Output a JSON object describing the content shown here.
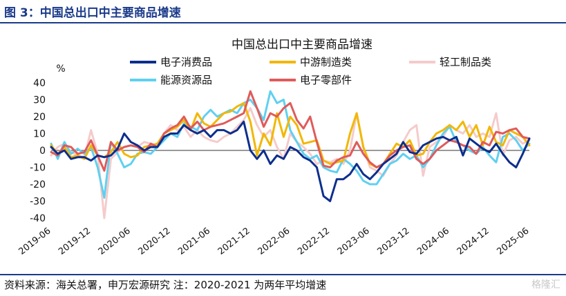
{
  "header": {
    "figure_title": "图 3：中国总出口中主要商品增速"
  },
  "footer": {
    "source": "资料来源：海关总署，申万宏源研究  注：2020-2021 为两年平均增速",
    "watermark": "格隆汇"
  },
  "colors": {
    "brand": "#1a3a8a",
    "electronics": "#0d2e8c",
    "midstream": "#f2b705",
    "light_industry": "#f5cbcb",
    "energy": "#5fd0f0",
    "components": "#e05a5a"
  },
  "chart_data": {
    "type": "line",
    "title": "中国总出口中主要商品增速",
    "ylabel": "%",
    "ylim": [
      -40,
      40
    ],
    "yticks": [
      -40,
      -30,
      -20,
      -10,
      0,
      10,
      20,
      30,
      40
    ],
    "grid": false,
    "legend_position": "top",
    "x": [
      "2019-06",
      "2019-07",
      "2019-08",
      "2019-09",
      "2019-10",
      "2019-11",
      "2019-12",
      "2020-01",
      "2020-02",
      "2020-03",
      "2020-04",
      "2020-05",
      "2020-06",
      "2020-07",
      "2020-08",
      "2020-09",
      "2020-10",
      "2020-11",
      "2020-12",
      "2021-01",
      "2021-02",
      "2021-03",
      "2021-04",
      "2021-05",
      "2021-06",
      "2021-07",
      "2021-08",
      "2021-09",
      "2021-10",
      "2021-11",
      "2021-12",
      "2022-01",
      "2022-02",
      "2022-03",
      "2022-04",
      "2022-05",
      "2022-06",
      "2022-07",
      "2022-08",
      "2022-09",
      "2022-10",
      "2022-11",
      "2022-12",
      "2023-01",
      "2023-02",
      "2023-03",
      "2023-04",
      "2023-05",
      "2023-06",
      "2023-07",
      "2023-08",
      "2023-09",
      "2023-10",
      "2023-11",
      "2023-12",
      "2024-01",
      "2024-02",
      "2024-03",
      "2024-04",
      "2024-05",
      "2024-06",
      "2024-07",
      "2024-08",
      "2024-09",
      "2024-10",
      "2024-11",
      "2024-12",
      "2025-01",
      "2025-02",
      "2025-03",
      "2025-04",
      "2025-05",
      "2025-06"
    ],
    "xticks": [
      "2019-06",
      "2019-12",
      "2020-06",
      "2020-12",
      "2021-06",
      "2021-12",
      "2022-06",
      "2022-12",
      "2023-06",
      "2023-12",
      "2024-06",
      "2024-12",
      "2025-06"
    ],
    "series": [
      {
        "name": "电子消费品",
        "color_key": "electronics",
        "values": [
          2,
          -2,
          0,
          -5,
          -4,
          -4,
          -6,
          -3,
          -4,
          -3,
          1,
          10,
          5,
          3,
          0,
          2,
          2,
          8,
          10,
          10,
          15,
          12,
          10,
          12,
          8,
          12,
          12,
          10,
          12,
          17,
          0,
          -5,
          0,
          -8,
          -3,
          -5,
          2,
          0,
          -4,
          -6,
          -10,
          -27,
          -30,
          -17,
          -17,
          -14,
          -8,
          -14,
          -17,
          -13,
          -8,
          -5,
          -2,
          5,
          -1,
          -2,
          3,
          5,
          7,
          8,
          6,
          8,
          -3,
          7,
          4,
          1,
          -1,
          4,
          -2,
          -7,
          -10,
          -2,
          7
        ]
      },
      {
        "name": "中游制造类",
        "color_key": "midstream",
        "values": [
          3,
          -2,
          2,
          -4,
          -3,
          -5,
          3,
          -3,
          -4,
          -1,
          5,
          -2,
          -4,
          -3,
          2,
          3,
          4,
          10,
          12,
          14,
          18,
          12,
          22,
          16,
          14,
          18,
          22,
          23,
          26,
          28,
          17,
          -3,
          10,
          3,
          22,
          8,
          20,
          15,
          4,
          5,
          6,
          -6,
          -8,
          -7,
          -6,
          10,
          22,
          2,
          -8,
          -10,
          -8,
          -2,
          4,
          2,
          6,
          -3,
          -2,
          5,
          10,
          12,
          15,
          12,
          17,
          8,
          15,
          3,
          14,
          5,
          3,
          12,
          10,
          8,
          3
        ]
      },
      {
        "name": "轻工制品类",
        "color_key": "light_industry",
        "values": [
          -3,
          2,
          4,
          -1,
          -3,
          -4,
          12,
          -2,
          -40,
          -5,
          -1,
          2,
          3,
          2,
          5,
          4,
          3,
          10,
          15,
          12,
          14,
          8,
          12,
          8,
          6,
          5,
          8,
          10,
          14,
          18,
          25,
          15,
          8,
          12,
          2,
          -5,
          10,
          5,
          2,
          -2,
          -8,
          -6,
          -7,
          -5,
          -8,
          0,
          22,
          2,
          -10,
          -12,
          -15,
          -8,
          -3,
          5,
          12,
          15,
          -15,
          2,
          5,
          8,
          15,
          12,
          10,
          15,
          8,
          10,
          8,
          22,
          -3,
          6,
          8,
          4,
          6
        ]
      },
      {
        "name": "能源资源品",
        "color_key": "energy",
        "values": [
          4,
          -5,
          5,
          -2,
          1,
          -2,
          2,
          -10,
          -28,
          5,
          -2,
          -10,
          -8,
          -2,
          -1,
          -2,
          2,
          6,
          10,
          8,
          16,
          14,
          12,
          20,
          24,
          20,
          22,
          24,
          22,
          28,
          30,
          25,
          18,
          35,
          28,
          30,
          12,
          5,
          -2,
          -5,
          -3,
          -10,
          -12,
          -13,
          -5,
          -8,
          -12,
          -18,
          -20,
          -20,
          -14,
          -8,
          -6,
          -2,
          -5,
          -3,
          -10,
          -5,
          3,
          10,
          14,
          5,
          3,
          0,
          -2,
          2,
          -3,
          -7,
          8,
          10,
          6,
          0,
          4
        ]
      },
      {
        "name": "电子零部件",
        "color_key": "components",
        "values": [
          -1,
          -3,
          3,
          2,
          -2,
          -1,
          6,
          -3,
          -12,
          5,
          0,
          2,
          3,
          2,
          -1,
          4,
          2,
          10,
          13,
          15,
          20,
          13,
          17,
          12,
          14,
          15,
          16,
          18,
          20,
          22,
          35,
          25,
          14,
          22,
          20,
          25,
          28,
          18,
          13,
          20,
          5,
          -9,
          -10,
          -6,
          -4,
          -3,
          5,
          -2,
          -7,
          -10,
          -8,
          -3,
          0,
          2,
          3,
          -5,
          -8,
          -5,
          0,
          3,
          6,
          5,
          3,
          2,
          -2,
          5,
          3,
          11,
          10,
          12,
          13,
          8,
          7
        ]
      }
    ]
  }
}
